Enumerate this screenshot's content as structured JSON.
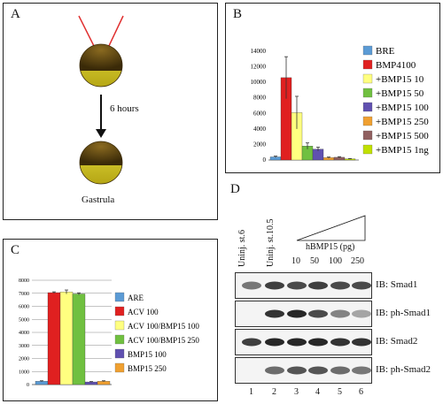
{
  "panelA": {
    "label": "A",
    "arrow_label": "6 hours",
    "caption": "Gastrula"
  },
  "panelB": {
    "label": "B",
    "colors": [
      "#5b9bd5",
      "#e02020",
      "#ffff80",
      "#70c040",
      "#6050b0",
      "#f0a030",
      "#906060",
      "#c0e000"
    ]
  },
  "panelC": {
    "label": "C",
    "colors": [
      "#5b9bd5",
      "#e02020",
      "#ffff80",
      "#70c040",
      "#6050b0",
      "#f0a030"
    ]
  },
  "panelD": {
    "label": "D",
    "lane_headers": [
      "Uninj. st.6",
      "Uninj. st.10.5"
    ],
    "triangle_label": "hBMP15 (pg)",
    "doses": [
      "10",
      "50",
      "100",
      "250"
    ],
    "lane_numbers": [
      "1",
      "2",
      "3",
      "4",
      "5",
      "6"
    ],
    "blots": [
      "IB: Smad1",
      "IB: ph-Smad1",
      "IB: Smad2",
      "IB: ph-Smad2"
    ]
  },
  "chart_data": [
    {
      "type": "bar",
      "panel": "B",
      "categories": [
        "BRE",
        "BMP4100",
        "+BMP15 10",
        "+BMP15 50",
        "+BMP15 100",
        "+BMP15 250",
        "+BMP15 500",
        "+BMP15 1ng"
      ],
      "values": [
        400,
        10600,
        6100,
        1800,
        1400,
        300,
        350,
        150
      ],
      "errors": [
        100,
        2700,
        2100,
        400,
        250,
        80,
        80,
        40
      ],
      "yticks": [
        "0",
        "2000",
        "4000",
        "6000",
        "8000",
        "10000",
        "12000",
        "14000"
      ],
      "ylim": [
        0,
        14000
      ],
      "legend_position": "right"
    },
    {
      "type": "bar",
      "panel": "C",
      "categories": [
        "ARE",
        "ACV 100",
        "ACV 100/BMP15 100",
        "ACV 100/BMP15 250",
        "BMP15 100",
        "BMP15 250"
      ],
      "values": [
        250,
        7050,
        7100,
        6950,
        200,
        250
      ],
      "errors": [
        40,
        60,
        150,
        80,
        30,
        40
      ],
      "yticks": [
        "0",
        "1000",
        "2000",
        "3000",
        "4000",
        "5000",
        "6000",
        "7000",
        "8000"
      ],
      "ylim": [
        0,
        8000
      ],
      "legend_position": "right"
    }
  ]
}
